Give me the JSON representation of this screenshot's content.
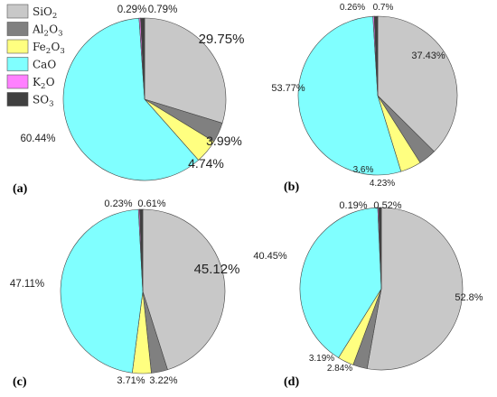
{
  "legend": {
    "entries": [
      {
        "name": "SiO",
        "sub": "2",
        "color": "#c8c8c8"
      },
      {
        "name": "Al",
        "sub": "2",
        "tail": "O",
        "sub2": "3",
        "color": "#808080"
      },
      {
        "name": "Fe",
        "sub": "2",
        "tail": "O",
        "sub2": "3",
        "color": "#ffff80"
      },
      {
        "name": "CaO",
        "color": "#80ffff"
      },
      {
        "name": "K",
        "sub": "2",
        "tail": "O",
        "color": "#ff80ff"
      },
      {
        "name": "SO",
        "sub": "3",
        "color": "#404040"
      }
    ]
  },
  "chart_data": [
    {
      "type": "pie",
      "panel": "(a)",
      "labels": [
        "SiO2",
        "Al2O3",
        "Fe2O3",
        "CaO",
        "K2O",
        "SO3"
      ],
      "values": [
        29.75,
        3.99,
        4.74,
        60.44,
        0.29,
        0.79
      ],
      "value_labels": [
        "29.75%",
        "3.99%",
        "4.74%",
        "60.44%",
        "0.29%",
        "0.79%"
      ]
    },
    {
      "type": "pie",
      "panel": "(b)",
      "labels": [
        "SiO2",
        "Al2O3",
        "Fe2O3",
        "CaO",
        "K2O",
        "SO3"
      ],
      "values": [
        37.43,
        3.6,
        4.23,
        53.77,
        0.26,
        0.7
      ],
      "value_labels": [
        "37.43%",
        "3.6%",
        "4.23%",
        "53.77%",
        "0.26%",
        "0.7%"
      ]
    },
    {
      "type": "pie",
      "panel": "(c)",
      "labels": [
        "SiO2",
        "Al2O3",
        "Fe2O3",
        "CaO",
        "K2O",
        "SO3"
      ],
      "values": [
        45.12,
        3.22,
        3.71,
        47.11,
        0.23,
        0.61
      ],
      "value_labels": [
        "45.12%",
        "3.22%",
        "3.71%",
        "47.11%",
        "0.23%",
        "0.61%"
      ]
    },
    {
      "type": "pie",
      "panel": "(d)",
      "labels": [
        "SiO2",
        "Al2O3",
        "Fe2O3",
        "CaO",
        "K2O",
        "SO3"
      ],
      "values": [
        52.8,
        2.84,
        3.19,
        40.45,
        0.19,
        0.52
      ],
      "value_labels": [
        "52.8%",
        "2.84%",
        "3.19%",
        "40.45%",
        "0.19%",
        "0.52%"
      ]
    }
  ]
}
